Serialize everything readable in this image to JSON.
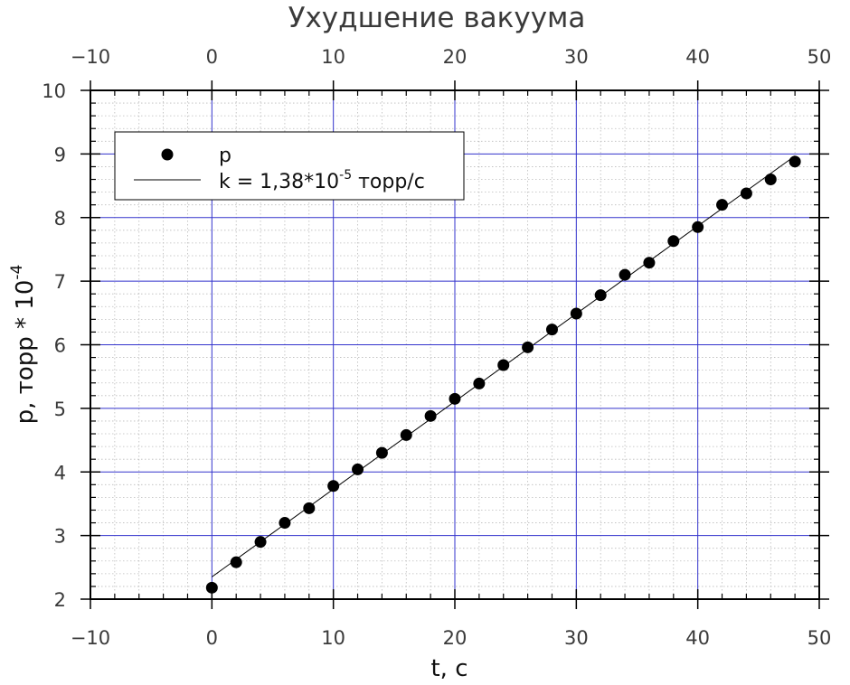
{
  "chart_data": {
    "type": "scatter",
    "title": "Ухудшение вакуума",
    "xlabel": "t, c",
    "ylabel_main": "p, торр * 10",
    "ylabel_exp": "-4",
    "xlim": [
      -10,
      50
    ],
    "ylim": [
      2,
      10
    ],
    "x_ticks": [
      -10,
      0,
      10,
      20,
      30,
      40,
      50
    ],
    "x_tick_labels": [
      "−10",
      "0",
      "10",
      "20",
      "30",
      "40",
      "50"
    ],
    "y_ticks": [
      2,
      3,
      4,
      5,
      6,
      7,
      8,
      9,
      10
    ],
    "y_tick_labels": [
      "2",
      "3",
      "4",
      "5",
      "6",
      "7",
      "8",
      "9",
      "10"
    ],
    "grid": true,
    "legend_placement": "top-left",
    "series": [
      {
        "name": "p",
        "kind": "points",
        "x": [
          0,
          2,
          4,
          6,
          8,
          10,
          12,
          14,
          16,
          18,
          20,
          22,
          24,
          26,
          28,
          30,
          32,
          34,
          36,
          38,
          40,
          42,
          44,
          46,
          48
        ],
        "y": [
          2.18,
          2.58,
          2.9,
          3.2,
          3.43,
          3.78,
          4.04,
          4.3,
          4.58,
          4.88,
          5.15,
          5.39,
          5.68,
          5.96,
          6.24,
          6.49,
          6.78,
          7.1,
          7.29,
          7.63,
          7.85,
          8.2,
          8.38,
          8.6,
          8.88
        ]
      },
      {
        "kind": "line",
        "x": [
          0,
          48
        ],
        "y": [
          2.35,
          8.97
        ]
      }
    ],
    "legend": {
      "points_label": "p",
      "line_label_main": "k = 1,38*10",
      "line_label_exp": "-5",
      "line_label_tail": " торр/с"
    },
    "colors": {
      "major_grid": "#3333cc",
      "minor_grid": "#bbbbbb",
      "points": "#000000",
      "line": "#000000",
      "axis": "#000000"
    }
  }
}
